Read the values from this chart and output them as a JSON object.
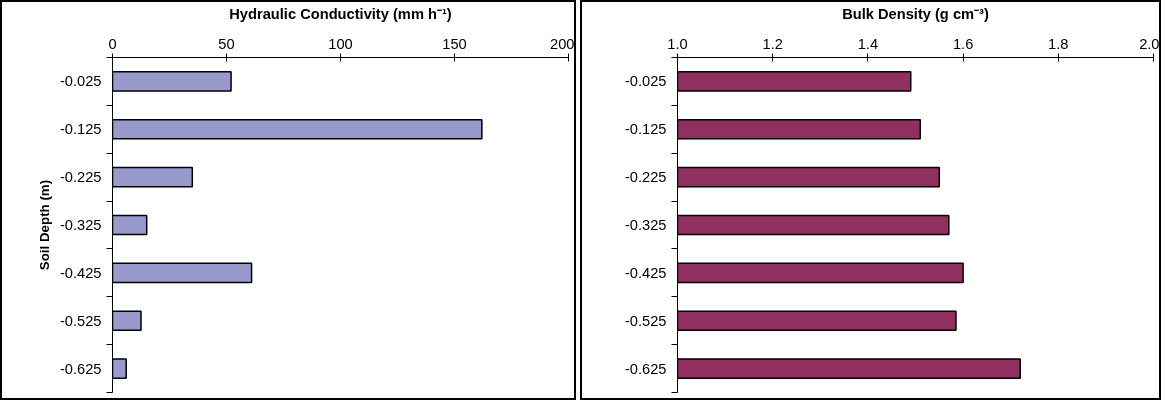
{
  "chart_data": [
    {
      "type": "bar",
      "orientation": "horizontal",
      "xlabel": "Hydraulic Conductivity (mm h⁻¹)",
      "ylabel": "Soil Depth (m)",
      "categories": [
        "-0.025",
        "-0.125",
        "-0.225",
        "-0.325",
        "-0.425",
        "-0.525",
        "-0.625"
      ],
      "values": [
        52,
        162,
        35,
        15,
        61,
        12.5,
        6
      ],
      "color": "#9999cc",
      "xlim": [
        0,
        200
      ],
      "xticks": [
        0,
        50,
        100,
        150,
        200
      ],
      "grid": false
    },
    {
      "type": "bar",
      "orientation": "horizontal",
      "xlabel": "Bulk Density (g cm⁻³)",
      "categories": [
        "-0.025",
        "-0.125",
        "-0.225",
        "-0.325",
        "-0.425",
        "-0.525",
        "-0.625"
      ],
      "values": [
        1.49,
        1.51,
        1.55,
        1.57,
        1.6,
        1.585,
        1.72
      ],
      "color": "#8f3060",
      "xlim": [
        1.0,
        2.0
      ],
      "xticks": [
        {
          "value": 1.0,
          "label": "1.0"
        },
        {
          "value": 1.2,
          "label": "1.2"
        },
        {
          "value": 1.4,
          "label": "1.4"
        },
        {
          "value": 1.6,
          "label": "1.6"
        },
        {
          "value": 1.8,
          "label": "1.8"
        },
        {
          "value": 2.0,
          "label": "2.0"
        }
      ],
      "grid": false
    }
  ]
}
